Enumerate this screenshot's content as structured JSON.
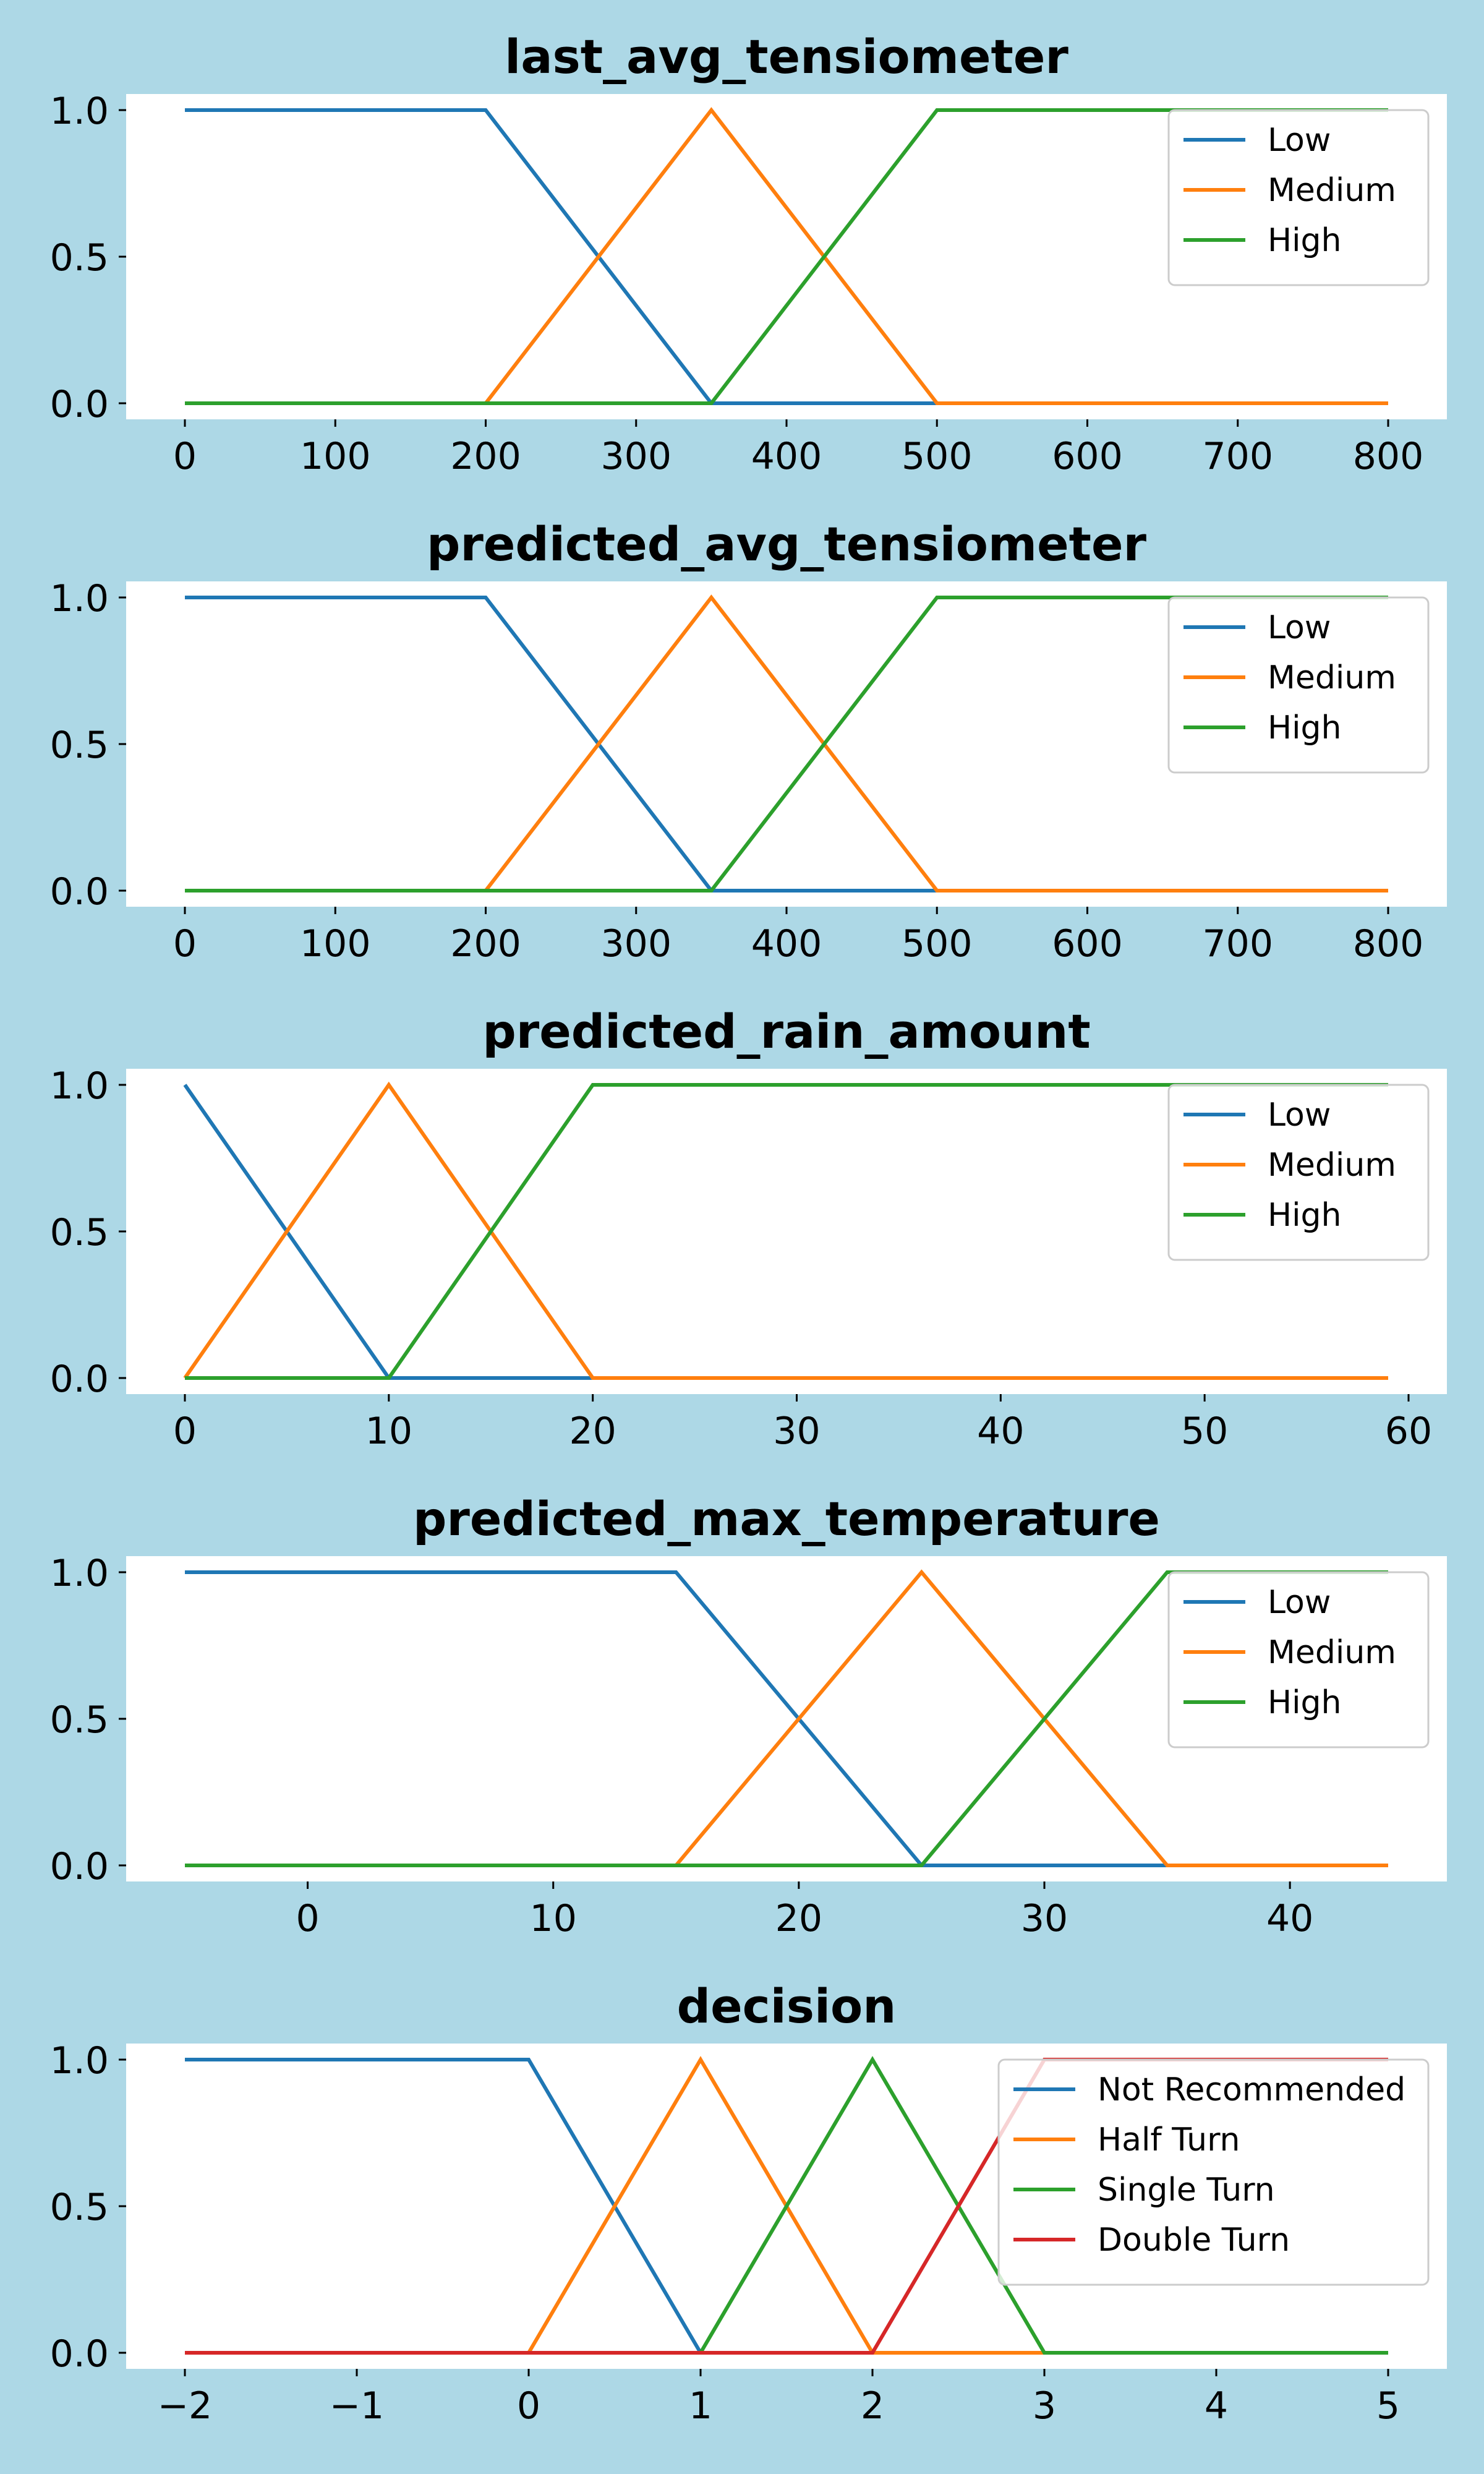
{
  "colors": {
    "figure_background": "#add8e6",
    "plot_background": "#ffffff",
    "series": [
      "#1f77b4",
      "#ff7f0e",
      "#2ca02c",
      "#d62728"
    ]
  },
  "chart_data": [
    {
      "type": "line",
      "title": "last_avg_tensiometer",
      "xlim": [
        0,
        800
      ],
      "ylim": [
        0,
        1
      ],
      "xticks": [
        "0",
        "100",
        "200",
        "300",
        "400",
        "500",
        "600",
        "700",
        "800"
      ],
      "xtick_values": [
        0,
        100,
        200,
        300,
        400,
        500,
        600,
        700,
        800
      ],
      "yticks": [
        "0.0",
        "0.5",
        "1.0"
      ],
      "ytick_values": [
        0,
        0.5,
        1
      ],
      "legend_position": "top-right",
      "grid": false,
      "series": [
        {
          "name": "Low",
          "x": [
            0,
            200,
            350,
            800
          ],
          "y": [
            1,
            1,
            0,
            0
          ]
        },
        {
          "name": "Medium",
          "x": [
            0,
            200,
            350,
            500,
            800
          ],
          "y": [
            0,
            0,
            1,
            0,
            0
          ]
        },
        {
          "name": "High",
          "x": [
            0,
            350,
            500,
            800
          ],
          "y": [
            0,
            0,
            1,
            1
          ]
        }
      ]
    },
    {
      "type": "line",
      "title": "predicted_avg_tensiometer",
      "xlim": [
        0,
        800
      ],
      "ylim": [
        0,
        1
      ],
      "xticks": [
        "0",
        "100",
        "200",
        "300",
        "400",
        "500",
        "600",
        "700",
        "800"
      ],
      "xtick_values": [
        0,
        100,
        200,
        300,
        400,
        500,
        600,
        700,
        800
      ],
      "yticks": [
        "0.0",
        "0.5",
        "1.0"
      ],
      "ytick_values": [
        0,
        0.5,
        1
      ],
      "legend_position": "top-right",
      "grid": false,
      "series": [
        {
          "name": "Low",
          "x": [
            0,
            200,
            350,
            800
          ],
          "y": [
            1,
            1,
            0,
            0
          ]
        },
        {
          "name": "Medium",
          "x": [
            0,
            200,
            350,
            500,
            800
          ],
          "y": [
            0,
            0,
            1,
            0,
            0
          ]
        },
        {
          "name": "High",
          "x": [
            0,
            350,
            500,
            800
          ],
          "y": [
            0,
            0,
            1,
            1
          ]
        }
      ]
    },
    {
      "type": "line",
      "title": "predicted_rain_amount",
      "xlim": [
        0,
        59
      ],
      "ylim": [
        0,
        1
      ],
      "xticks": [
        "0",
        "10",
        "20",
        "30",
        "40",
        "50",
        "60"
      ],
      "xtick_values": [
        0,
        10,
        20,
        30,
        40,
        50,
        60
      ],
      "yticks": [
        "0.0",
        "0.5",
        "1.0"
      ],
      "ytick_values": [
        0,
        0.5,
        1
      ],
      "legend_position": "top-right",
      "grid": false,
      "series": [
        {
          "name": "Low",
          "x": [
            0,
            10,
            59
          ],
          "y": [
            1,
            0,
            0
          ]
        },
        {
          "name": "Medium",
          "x": [
            0,
            10,
            20,
            59
          ],
          "y": [
            0,
            1,
            0,
            0
          ]
        },
        {
          "name": "High",
          "x": [
            0,
            10,
            20,
            59
          ],
          "y": [
            0,
            0,
            1,
            1
          ]
        }
      ]
    },
    {
      "type": "line",
      "title": "predicted_max_temperature",
      "xlim": [
        -5,
        44
      ],
      "ylim": [
        0,
        1
      ],
      "xticks": [
        "0",
        "10",
        "20",
        "30",
        "40"
      ],
      "xtick_values": [
        0,
        10,
        20,
        30,
        40
      ],
      "yticks": [
        "0.0",
        "0.5",
        "1.0"
      ],
      "ytick_values": [
        0,
        0.5,
        1
      ],
      "legend_position": "top-right",
      "grid": false,
      "series": [
        {
          "name": "Low",
          "x": [
            -5,
            15,
            25,
            44
          ],
          "y": [
            1,
            1,
            0,
            0
          ]
        },
        {
          "name": "Medium",
          "x": [
            -5,
            15,
            25,
            35,
            44
          ],
          "y": [
            0,
            0,
            1,
            0,
            0
          ]
        },
        {
          "name": "High",
          "x": [
            -5,
            25,
            35,
            44
          ],
          "y": [
            0,
            0,
            1,
            1
          ]
        }
      ]
    },
    {
      "type": "line",
      "title": "decision",
      "xlim": [
        -2,
        5
      ],
      "ylim": [
        0,
        1
      ],
      "xticks": [
        "−2",
        "−1",
        "0",
        "1",
        "2",
        "3",
        "4",
        "5"
      ],
      "xtick_values": [
        -2,
        -1,
        0,
        1,
        2,
        3,
        4,
        5
      ],
      "yticks": [
        "0.0",
        "0.5",
        "1.0"
      ],
      "ytick_values": [
        0,
        0.5,
        1
      ],
      "legend_position": "top-right",
      "grid": false,
      "series": [
        {
          "name": "Not Recommended",
          "x": [
            -2,
            0,
            1,
            5
          ],
          "y": [
            1,
            1,
            0,
            0
          ]
        },
        {
          "name": "Half Turn",
          "x": [
            -2,
            0,
            1,
            2,
            5
          ],
          "y": [
            0,
            0,
            1,
            0,
            0
          ]
        },
        {
          "name": "Single Turn",
          "x": [
            -2,
            1,
            2,
            3,
            5
          ],
          "y": [
            0,
            0,
            1,
            0,
            0
          ]
        },
        {
          "name": "Double Turn",
          "x": [
            -2,
            2,
            3,
            5
          ],
          "y": [
            0,
            0,
            1,
            1
          ]
        }
      ]
    }
  ]
}
